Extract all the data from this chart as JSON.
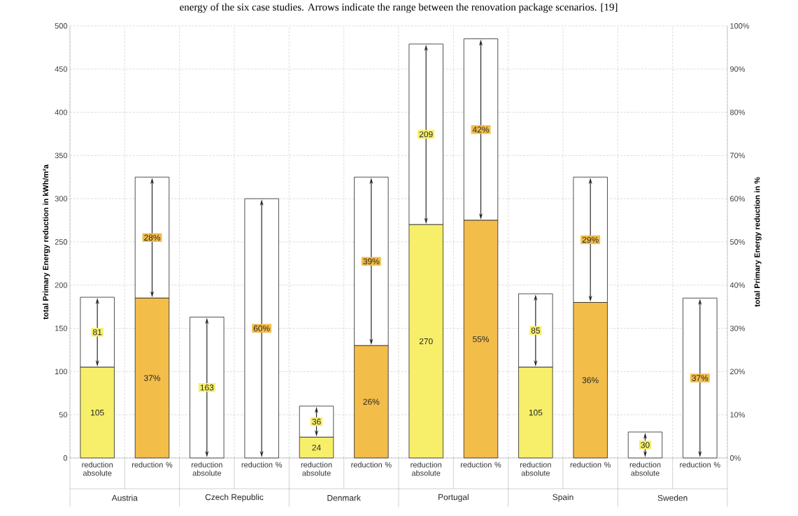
{
  "chart_data": {
    "type": "bar",
    "title": "energy of the six case studies. Arrows indicate the range between the renovation package scenarios. [19]",
    "ylabel": "total Primary Energy reduction in kWh/m²a",
    "y2label": "total Primary Energy reduction in %",
    "categories": [
      "reduction absolute",
      "reduction %",
      "reduction absolute",
      "reduction %",
      "reduction absolute",
      "reduction %",
      "reduction absolute",
      "reduction %",
      "reduction absolute",
      "reduction %",
      "reduction absolute",
      "reduction %"
    ],
    "annotations": [
      "Austria",
      "Czech Republic",
      "Denmark",
      "Portugal",
      "Spain",
      "Sweden"
    ],
    "stacked": true,
    "grid": true,
    "ylim": [
      0,
      500
    ],
    "yticks": [
      0,
      50,
      100,
      150,
      200,
      250,
      300,
      350,
      400,
      450,
      500
    ],
    "y2lim": [
      0,
      100
    ],
    "y2ticks": [
      {
        "value": 0,
        "label": "0%"
      },
      {
        "value": 10,
        "label": "10%"
      },
      {
        "value": 20,
        "label": "20%"
      },
      {
        "value": 30,
        "label": "30%"
      },
      {
        "value": 40,
        "label": "40%"
      },
      {
        "value": 50,
        "label": "50%"
      },
      {
        "value": 60,
        "label": "60%"
      },
      {
        "value": 70,
        "label": "70%"
      },
      {
        "value": 80,
        "label": "80%"
      },
      {
        "value": 90,
        "label": "90%"
      },
      {
        "value": 100,
        "label": "100%"
      }
    ],
    "series": [
      {
        "color": "#f7ef6a",
        "values": [
          105,
          null,
          0,
          null,
          24,
          null,
          270,
          null,
          105,
          null,
          0,
          null
        ],
        "value_labels": [
          "105",
          null,
          null,
          null,
          "24",
          null,
          "270",
          null,
          "105",
          null,
          null,
          null
        ]
      },
      {
        "color": "#ffffff",
        "values": [
          81,
          null,
          163,
          null,
          36,
          null,
          209,
          null,
          85,
          null,
          30,
          null
        ],
        "value_labels": [
          "81",
          null,
          "163",
          null,
          "36",
          null,
          "209",
          null,
          "85",
          null,
          "30",
          null
        ]
      },
      {
        "color": "#f3bd4a",
        "axis": "y2",
        "values": [
          null,
          37,
          null,
          0,
          null,
          26,
          null,
          55,
          null,
          36,
          null,
          0
        ],
        "value_labels": [
          null,
          "37%",
          null,
          null,
          null,
          "26%",
          null,
          "55%",
          null,
          "36%",
          null,
          null
        ]
      },
      {
        "color": "#ffffff",
        "axis": "y2",
        "values": [
          null,
          28,
          null,
          60,
          null,
          39,
          null,
          42,
          null,
          29,
          null,
          37
        ],
        "value_labels": [
          null,
          "28%",
          null,
          "60%",
          null,
          "39%",
          null,
          "42%",
          null,
          "29%",
          null,
          "37%"
        ]
      }
    ]
  }
}
